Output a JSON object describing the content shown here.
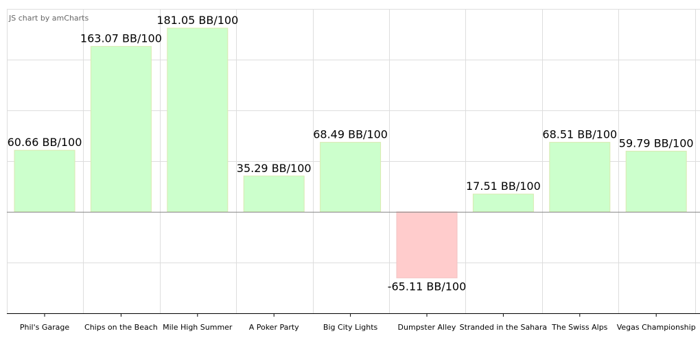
{
  "credit": "JS chart by amCharts",
  "chart_data": {
    "type": "bar",
    "categories": [
      "Phil's Garage",
      "Chips on the Beach",
      "Mile High Summer",
      "A Poker Party",
      "Big City Lights",
      "Dumpster Alley",
      "Stranded in the Sahara",
      "The Swiss Alps",
      "Vegas Championship"
    ],
    "values": [
      60.66,
      163.07,
      181.05,
      35.29,
      68.49,
      -65.11,
      17.51,
      68.51,
      59.79
    ],
    "data_labels": [
      "60.66 BB/100",
      "163.07 BB/100",
      "181.05 BB/100",
      "35.29 BB/100",
      "68.49 BB/100",
      "-65.11 BB/100",
      "17.51 BB/100",
      "68.51 BB/100",
      "59.79 BB/100"
    ],
    "ylim": [
      -100,
      200
    ],
    "y_grid_step": 50,
    "grid": true,
    "colors": {
      "positive_fill": "#ccffcc",
      "positive_stroke": "#d9eab0",
      "negative_fill": "#ffcccc",
      "negative_stroke": "#f2c2c2",
      "grid": "#dddddd",
      "baseline": "#888888",
      "axis": "#000000"
    }
  }
}
